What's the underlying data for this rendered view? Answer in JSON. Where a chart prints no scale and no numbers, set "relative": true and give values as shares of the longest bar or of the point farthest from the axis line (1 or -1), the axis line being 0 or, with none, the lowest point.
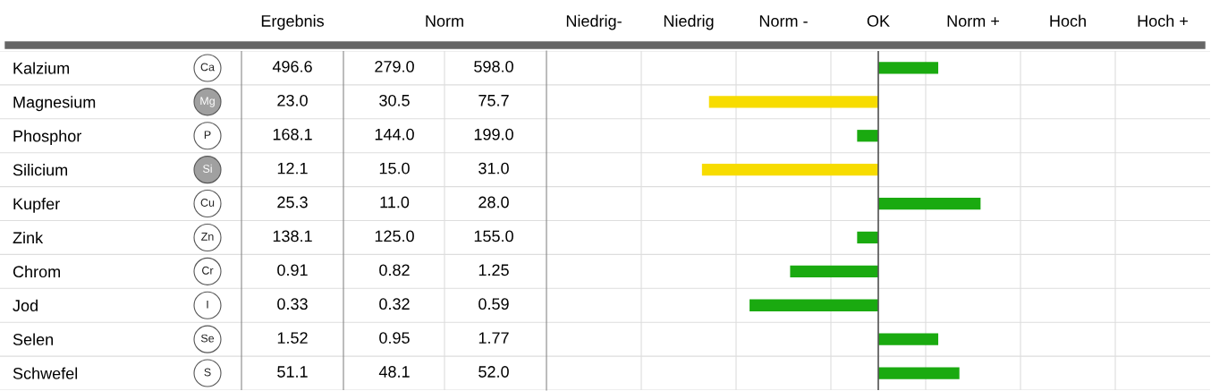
{
  "chart_data": [
    {
      "type": "other",
      "annotations": [
        "Ergebnis",
        "Norm",
        "Ca",
        "496.6",
        "279.0",
        "598.0",
        "Mg",
        "23.0",
        "30.5",
        "75.7",
        "P",
        "168.1",
        "144.0",
        "199.0",
        "Si",
        "12.1",
        "15.0",
        "31.0",
        "Cu",
        "25.3",
        "11.0",
        "28.0",
        "Zn",
        "138.1",
        "125.0",
        "155.0",
        "Cr",
        "0.91",
        "0.82",
        "1.25",
        "I",
        "0.33",
        "0.32",
        "0.59",
        "Se",
        "1.52",
        "0.95",
        "1.77",
        "S",
        "51.1",
        "48.1",
        "52.0"
      ]
    },
    {
      "type": "bar",
      "orientation": "horizontal",
      "categories": [
        "Kalzium",
        "Magnesium",
        "Phosphor",
        "Silicium",
        "Kupfer",
        "Zink",
        "Chrom",
        "Jod",
        "Selen",
        "Schwefel"
      ],
      "values": [
        0.34,
        -0.96,
        -0.12,
        -1,
        0.58,
        -0.12,
        -0.5,
        -0.73,
        0.34,
        0.46
      ],
      "relative": true,
      "annotations": [
        "Niedrig-",
        "Niedrig",
        "Norm -",
        "OK",
        "Norm +",
        "Hoch",
        "Hoch +"
      ],
      "colors": [
        "#1aaa10",
        "#f7dc00",
        "#1aaa10",
        "#f7dc00",
        "#1aaa10",
        "#1aaa10",
        "#1aaa10",
        "#1aaa10",
        "#1aaa10",
        "#1aaa10"
      ],
      "grid": true,
      "ref_lines": [
        {
          "axis": "x",
          "value": 0,
          "color": "#555555"
        }
      ]
    }
  ]
}
